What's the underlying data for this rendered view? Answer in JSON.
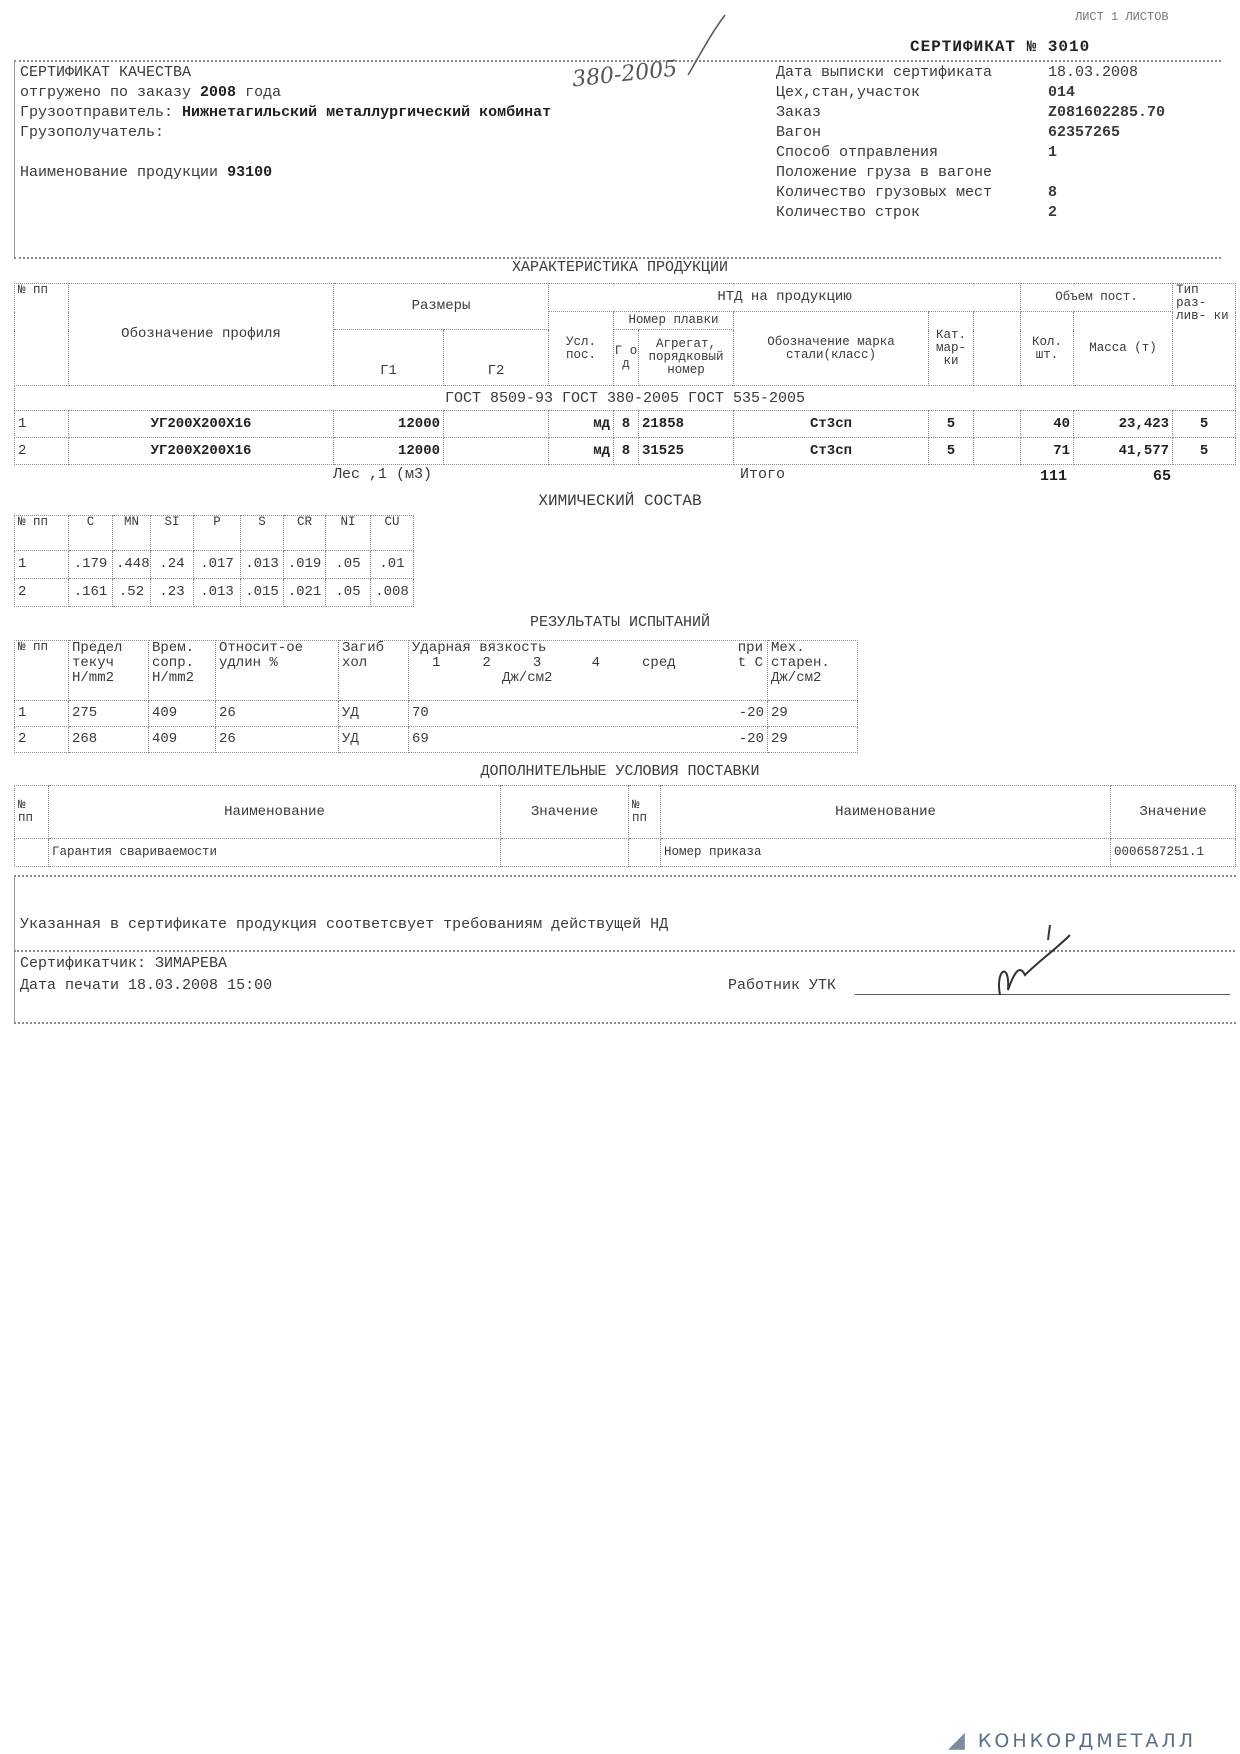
{
  "sheet_label": "ЛИСТ 1 ЛИСТОВ",
  "certificate_heading": "СЕРТИФИКАТ №",
  "certificate_number": "3010",
  "header_left": {
    "title": "СЕРТИФИКАТ КАЧЕСТВА",
    "shipped_label": "отгружено по заказу",
    "shipped_year": "2008",
    "shipped_suffix": "года",
    "shipper_label": "Грузоотправитель:",
    "shipper": "Нижнетагильский металлургический комбинат",
    "consignee_label": "Грузополучатель:",
    "product_label": "Наименование продукции",
    "product_code": "93100"
  },
  "handwritten_note": "380-2005",
  "header_right": [
    {
      "label": "Дата выписки сертификата",
      "value": "18.03.2008"
    },
    {
      "label": "Цех,стан,участок",
      "value": "014"
    },
    {
      "label": "Заказ",
      "value": "Z081602285.70"
    },
    {
      "label": "Вагон",
      "value": "62357265"
    },
    {
      "label": "Способ отправления",
      "value": "1"
    },
    {
      "label": "Положение груза в вагоне",
      "value": ""
    },
    {
      "label": "Количество грузовых мест",
      "value": "8"
    },
    {
      "label": "Количество строк",
      "value": "2"
    }
  ],
  "product": {
    "title": "ХАРАКТЕРИСТИКА ПРОДУКЦИИ",
    "h_no": "№ пп",
    "h_profile": "Обозначение профиля",
    "h_sizes": "Размеры",
    "h_g1": "Г1",
    "h_g2": "Г2",
    "h_ntd": "НТД на продукцию",
    "h_cond": "Усл. пос.",
    "h_heat": "Номер плавки",
    "h_year": "Г о д",
    "h_unit": "Агрегат, порядковый номер",
    "h_grade": "Обозначение марка стали(класс)",
    "h_cat": "Кат. мар- ки",
    "h_volume": "Объем пост.",
    "h_qty": "Кол. шт.",
    "h_mass": "Масса (т)",
    "h_type": "Тип раз- лив- ки",
    "standards": "ГОСТ 8509-93   ГОСТ 380-2005 ГОСТ 535-2005",
    "rows": [
      {
        "no": "1",
        "profile": "УГ200Х200Х16",
        "g1": "12000",
        "g2": "",
        "cond": "мд",
        "year": "8",
        "heat": "21858",
        "grade": "Ст3сп",
        "cat": "5",
        "qty": "40",
        "mass": "23,423",
        "type": "5"
      },
      {
        "no": "2",
        "profile": "УГ200Х200Х16",
        "g1": "12000",
        "g2": "",
        "cond": "мд",
        "year": "8",
        "heat": "31525",
        "grade": "Ст3сп",
        "cat": "5",
        "qty": "71",
        "mass": "41,577",
        "type": "5"
      }
    ],
    "les": "Лес ,1 (м3)",
    "total_label": "Итого",
    "total_qty": "111",
    "total_mass": "65"
  },
  "chem": {
    "title": "ХИМИЧЕСКИЙ СОСТАВ",
    "headers": [
      "№ пп",
      "C",
      "MN",
      "SI",
      "P",
      "S",
      "CR",
      "NI",
      "CU"
    ],
    "rows": [
      [
        "1",
        ".179",
        ".448",
        ".24",
        ".017",
        ".013",
        ".019",
        ".05",
        ".01"
      ],
      [
        "2",
        ".161",
        ".52",
        ".23",
        ".013",
        ".015",
        ".021",
        ".05",
        ".008"
      ]
    ]
  },
  "tests": {
    "title": "РЕЗУЛЬТАТЫ ИСПЫТАНИЙ",
    "h_no": "№ пп",
    "h_yield": "Предел текуч Н/mm2",
    "h_tensile": "Врем. сопр. Н/mm2",
    "h_elong": "Относит-ое удлин %",
    "h_bend": "Загиб хол",
    "h_impact": "Ударная вязкость",
    "h_impact_cols": "1     2     3      4     сред",
    "h_impact_unit": "Дж/см2",
    "h_temp": "при t С",
    "h_aging": "Мех. старен. Дж/см2",
    "rows": [
      {
        "no": "1",
        "yield": "275",
        "tensile": "409",
        "elong": "26",
        "bend": "УД",
        "impact": "70",
        "temp": "-20",
        "aging": "29"
      },
      {
        "no": "2",
        "yield": "268",
        "tensile": "409",
        "elong": "26",
        "bend": "УД",
        "impact": "69",
        "temp": "-20",
        "aging": "29"
      }
    ]
  },
  "extra": {
    "title": "ДОПОЛНИТЕЛЬНЫЕ УСЛОВИЯ ПОСТАВКИ",
    "h_no": "№ пп",
    "h_name": "Наименование",
    "h_value": "Значение",
    "left_name": "Гарантия свариваемости",
    "left_value": "",
    "right_name": "Номер приказа",
    "right_value": "0006587251.1"
  },
  "footer": {
    "statement": "Указанная в сертификате продукция соответсвует требованиям действущей НД",
    "certifier_label": "Сертификатчик:",
    "certifier": "ЗИМАРЕВА",
    "print_date_label": "Дата печати",
    "print_date": "18.03.2008 15:00",
    "utk_label": "Работник УТК"
  },
  "watermark_logo": "КОНКОРДМЕТАЛЛ"
}
